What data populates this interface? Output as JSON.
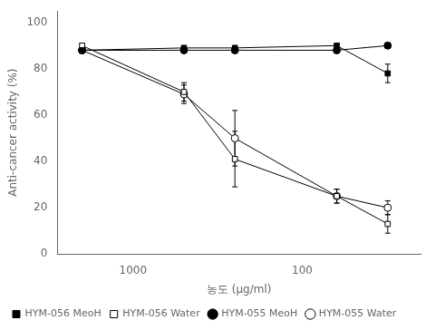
{
  "chart_data": {
    "type": "line",
    "x": [
      2000,
      500,
      250,
      62.5,
      31.25
    ],
    "series": [
      {
        "name": "HYM-056 MeoH",
        "color": "black",
        "marker": "filled_square",
        "values": [
          88,
          89,
          89,
          90,
          78
        ],
        "errors": [
          1,
          1,
          1,
          1,
          4
        ]
      },
      {
        "name": "HYM-056 Water",
        "color": "black",
        "marker": "open_square",
        "values": [
          90,
          70,
          41,
          25,
          13
        ],
        "errors": [
          1,
          4,
          12,
          3,
          4
        ]
      },
      {
        "name": "HYM-055 MeoH",
        "color": "black",
        "marker": "filled_circle",
        "values": [
          88,
          88,
          88,
          88,
          90
        ],
        "errors": [
          1,
          1,
          1,
          1,
          1
        ]
      },
      {
        "name": "HYM-055 Water",
        "color": "black",
        "marker": "open_circle",
        "values": [
          88,
          69,
          50,
          25,
          20
        ],
        "errors": [
          1,
          4,
          12,
          3,
          3
        ]
      }
    ],
    "xlabel": "농도 (μg/ml)",
    "ylabel": "Anti-cancer activity (%)",
    "xlim": [
      2800,
      20
    ],
    "ylim": [
      0,
      105
    ],
    "xticks": [
      1000,
      100
    ],
    "yticks": [
      0,
      20,
      40,
      60,
      80,
      100
    ],
    "log": "x",
    "grid": false,
    "legend": "lower left"
  }
}
